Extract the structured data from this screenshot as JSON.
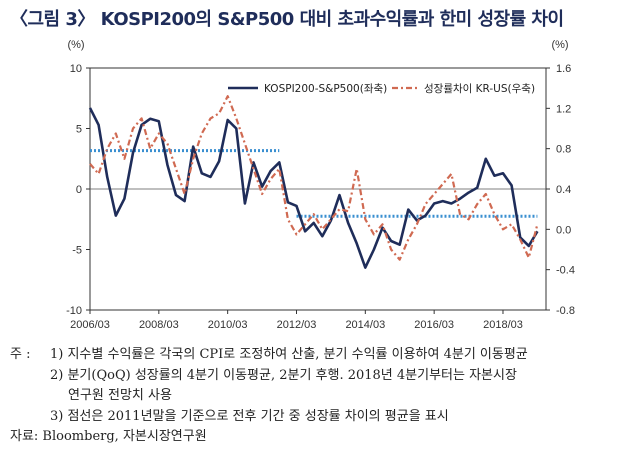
{
  "title": "〈그림 3〉 KOSPI200의 S&P500 대비 초과수익률과 한미 성장률 차이",
  "chart_data": {
    "type": "line",
    "left_axis": {
      "unit": "(%)",
      "min": -10,
      "max": 10,
      "ticks": [
        10,
        5,
        0,
        -5,
        -10
      ]
    },
    "right_axis": {
      "unit": "(%)",
      "min": -0.8,
      "max": 1.6,
      "ticks": [
        1.6,
        1.2,
        0.8,
        0.4,
        0.0,
        -0.4,
        -0.8
      ],
      "tick_labels": [
        "1.6",
        "1.2",
        "0.8",
        "0.4",
        "0.0",
        "-0.4",
        "-0.8"
      ]
    },
    "x_axis": {
      "min": 2006.0,
      "max": 2019.25,
      "ticks": [
        2006.0,
        2008.0,
        2010.0,
        2012.0,
        2014.0,
        2016.0,
        2018.0
      ],
      "tick_labels": [
        "2006/03",
        "2008/03",
        "2010/03",
        "2012/03",
        "2014/03",
        "2016/03",
        "2018/03"
      ]
    },
    "legend_position": "top-right",
    "series": [
      {
        "name": "KOSPI200-S&P500(좌축)",
        "axis": "left",
        "color": "#1f2d5a",
        "style": "solid",
        "x": [
          2006.0,
          2006.25,
          2006.5,
          2006.75,
          2007.0,
          2007.25,
          2007.5,
          2007.75,
          2008.0,
          2008.25,
          2008.5,
          2008.75,
          2009.0,
          2009.25,
          2009.5,
          2009.75,
          2010.0,
          2010.25,
          2010.5,
          2010.75,
          2011.0,
          2011.25,
          2011.5,
          2011.75,
          2012.0,
          2012.25,
          2012.5,
          2012.75,
          2013.0,
          2013.25,
          2013.5,
          2013.75,
          2014.0,
          2014.25,
          2014.5,
          2014.75,
          2015.0,
          2015.25,
          2015.5,
          2015.75,
          2016.0,
          2016.25,
          2016.5,
          2016.75,
          2017.0,
          2017.25,
          2017.5,
          2017.75,
          2018.0,
          2018.25,
          2018.5,
          2018.75,
          2019.0
        ],
        "values": [
          6.7,
          5.3,
          1.0,
          -2.2,
          -0.8,
          3.0,
          5.3,
          5.8,
          5.6,
          2.0,
          -0.5,
          -1.0,
          3.5,
          1.3,
          1.0,
          2.3,
          5.7,
          5.0,
          -1.2,
          2.2,
          0.2,
          1.5,
          2.2,
          -1.1,
          -1.4,
          -3.5,
          -2.8,
          -3.9,
          -2.6,
          -0.5,
          -2.8,
          -4.5,
          -6.5,
          -5.0,
          -3.2,
          -4.3,
          -4.6,
          -1.7,
          -2.6,
          -2.2,
          -1.2,
          -1.0,
          -1.2,
          -0.8,
          -0.3,
          0.1,
          2.5,
          1.1,
          1.3,
          0.3,
          -4.0,
          -4.7,
          -3.5
        ]
      },
      {
        "name": "성장률차이 KR-US(우축)",
        "axis": "right",
        "color": "#d06a52",
        "style": "dash-dot",
        "x": [
          2006.0,
          2006.25,
          2006.5,
          2006.75,
          2007.0,
          2007.25,
          2007.5,
          2007.75,
          2008.0,
          2008.25,
          2008.5,
          2008.75,
          2009.0,
          2009.25,
          2009.5,
          2009.75,
          2010.0,
          2010.25,
          2010.5,
          2010.75,
          2011.0,
          2011.25,
          2011.5,
          2011.75,
          2012.0,
          2012.25,
          2012.5,
          2012.75,
          2013.0,
          2013.25,
          2013.5,
          2013.75,
          2014.0,
          2014.25,
          2014.5,
          2014.75,
          2015.0,
          2015.25,
          2015.5,
          2015.75,
          2016.0,
          2016.25,
          2016.5,
          2016.75,
          2017.0,
          2017.25,
          2017.5,
          2017.75,
          2018.0,
          2018.25,
          2018.5,
          2018.75,
          2019.0
        ],
        "values": [
          0.65,
          0.55,
          0.8,
          0.95,
          0.7,
          1.0,
          1.1,
          0.8,
          0.95,
          0.85,
          0.6,
          0.35,
          0.7,
          0.95,
          1.1,
          1.15,
          1.32,
          1.1,
          0.85,
          0.6,
          0.35,
          0.5,
          0.6,
          0.1,
          -0.05,
          0.05,
          0.15,
          0.0,
          0.1,
          0.2,
          0.18,
          0.6,
          0.1,
          -0.05,
          0.05,
          -0.2,
          -0.3,
          -0.1,
          0.05,
          0.25,
          0.35,
          0.45,
          0.55,
          0.15,
          0.1,
          0.25,
          0.35,
          0.15,
          0.0,
          0.05,
          -0.1,
          -0.28,
          0.05
        ]
      }
    ],
    "reference_lines": [
      {
        "axis": "right",
        "value": 0.78,
        "x_start": 2006.0,
        "x_end": 2011.5,
        "color": "#3a8fd0"
      },
      {
        "axis": "right",
        "value": 0.13,
        "x_start": 2012.0,
        "x_end": 2019.0,
        "color": "#3a8fd0"
      }
    ]
  },
  "notes": {
    "line1_lead": "주",
    "line1_colon": ":",
    "line1": "1) 지수별 수익률은 각국의 CPI로 조정하여 산출, 분기 수익률 이용하여 4분기 이동평균",
    "line2": "2) 분기(QoQ) 성장률의 4분기 이동평균, 2분기 후행. 2018년 4분기부터는 자본시장",
    "line2b": "연구원 전망치 사용",
    "line3": "3) 점선은 2011년말을 기준으로 전후 기간 중 성장률 차이의 평균을 표시",
    "source": "자료: Bloomberg, 자본시장연구원"
  }
}
